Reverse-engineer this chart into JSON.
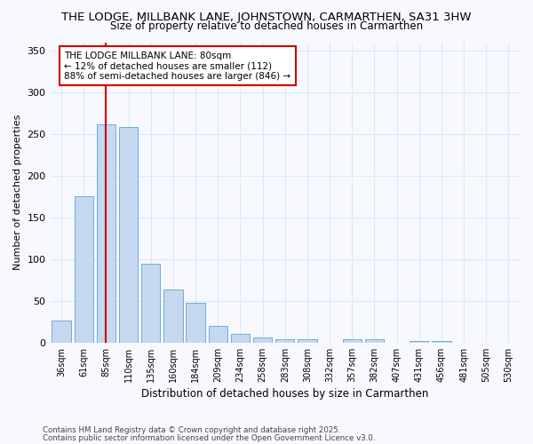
{
  "title1": "THE LODGE, MILLBANK LANE, JOHNSTOWN, CARMARTHEN, SA31 3HW",
  "title2": "Size of property relative to detached houses in Carmarthen",
  "xlabel": "Distribution of detached houses by size in Carmarthen",
  "ylabel": "Number of detached properties",
  "categories": [
    "36sqm",
    "61sqm",
    "85sqm",
    "110sqm",
    "135sqm",
    "160sqm",
    "184sqm",
    "209sqm",
    "234sqm",
    "258sqm",
    "283sqm",
    "308sqm",
    "332sqm",
    "357sqm",
    "382sqm",
    "407sqm",
    "431sqm",
    "456sqm",
    "481sqm",
    "505sqm",
    "530sqm"
  ],
  "heights": [
    26,
    175,
    262,
    258,
    95,
    64,
    48,
    20,
    10,
    6,
    4,
    4,
    0,
    4,
    4,
    0,
    2,
    2,
    0,
    0,
    0
  ],
  "bar_color": "#c5d8f0",
  "bar_edge_color": "#6aaee0",
  "ref_line_index": 2,
  "ref_line_color": "#cc0000",
  "annotation_text": "THE LODGE MILLBANK LANE: 80sqm\n← 12% of detached houses are smaller (112)\n88% of semi-detached houses are larger (846) →",
  "annotation_box_facecolor": "#ffffff",
  "annotation_box_edgecolor": "#cc0000",
  "ylim": [
    0,
    360
  ],
  "yticks": [
    0,
    50,
    100,
    150,
    200,
    250,
    300,
    350
  ],
  "bg_color": "#f7f9ff",
  "grid_color": "#dce8f8",
  "title_fontsize": 9.5,
  "subtitle_fontsize": 8.5,
  "footer1": "Contains HM Land Registry data © Crown copyright and database right 2025.",
  "footer2": "Contains public sector information licensed under the Open Government Licence v3.0."
}
